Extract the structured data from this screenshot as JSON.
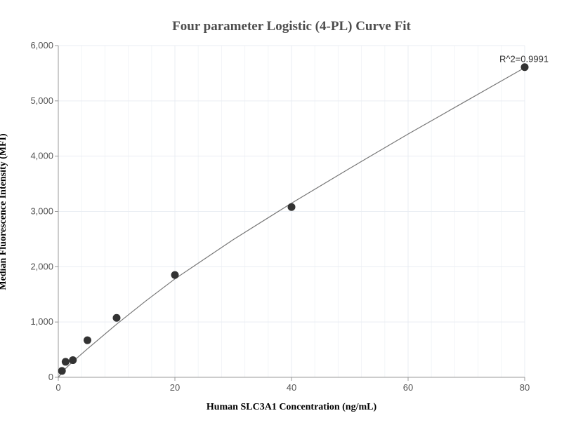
{
  "chart_data": {
    "type": "scatter",
    "title": "Four parameter Logistic (4-PL) Curve Fit",
    "xlabel": "Human SLC3A1 Concentration (ng/mL)",
    "ylabel": "Median Fluorescence Intensity (MFI)",
    "xlim": [
      0,
      80
    ],
    "ylim": [
      0,
      6000
    ],
    "xticks": [
      0,
      20,
      40,
      60,
      80
    ],
    "xtick_labels": [
      "0",
      "20",
      "40",
      "60",
      "80"
    ],
    "yticks": [
      0,
      1000,
      2000,
      3000,
      4000,
      5000,
      6000
    ],
    "ytick_labels": [
      "0",
      "1,000",
      "2,000",
      "3,000",
      "4,000",
      "5,000",
      "6,000"
    ],
    "grid": true,
    "points": [
      {
        "x": 0.625,
        "y": 115
      },
      {
        "x": 1.25,
        "y": 280
      },
      {
        "x": 2.5,
        "y": 310
      },
      {
        "x": 5,
        "y": 670
      },
      {
        "x": 10,
        "y": 1075
      },
      {
        "x": 20,
        "y": 1850
      },
      {
        "x": 40,
        "y": 3080
      },
      {
        "x": 80,
        "y": 5610
      }
    ],
    "fit_curve": [
      {
        "x": 0,
        "y": 0
      },
      {
        "x": 1.25,
        "y": 160
      },
      {
        "x": 2.5,
        "y": 285
      },
      {
        "x": 5,
        "y": 515
      },
      {
        "x": 10,
        "y": 960
      },
      {
        "x": 15,
        "y": 1380
      },
      {
        "x": 20,
        "y": 1780
      },
      {
        "x": 30,
        "y": 2490
      },
      {
        "x": 40,
        "y": 3150
      },
      {
        "x": 50,
        "y": 3780
      },
      {
        "x": 60,
        "y": 4400
      },
      {
        "x": 70,
        "y": 5000
      },
      {
        "x": 80,
        "y": 5600
      }
    ],
    "annotation": "R^2=0.9991",
    "colors": {
      "marker": "#333333",
      "curve": "#777777",
      "grid": "#e9edf3",
      "axis": "#999999"
    }
  }
}
